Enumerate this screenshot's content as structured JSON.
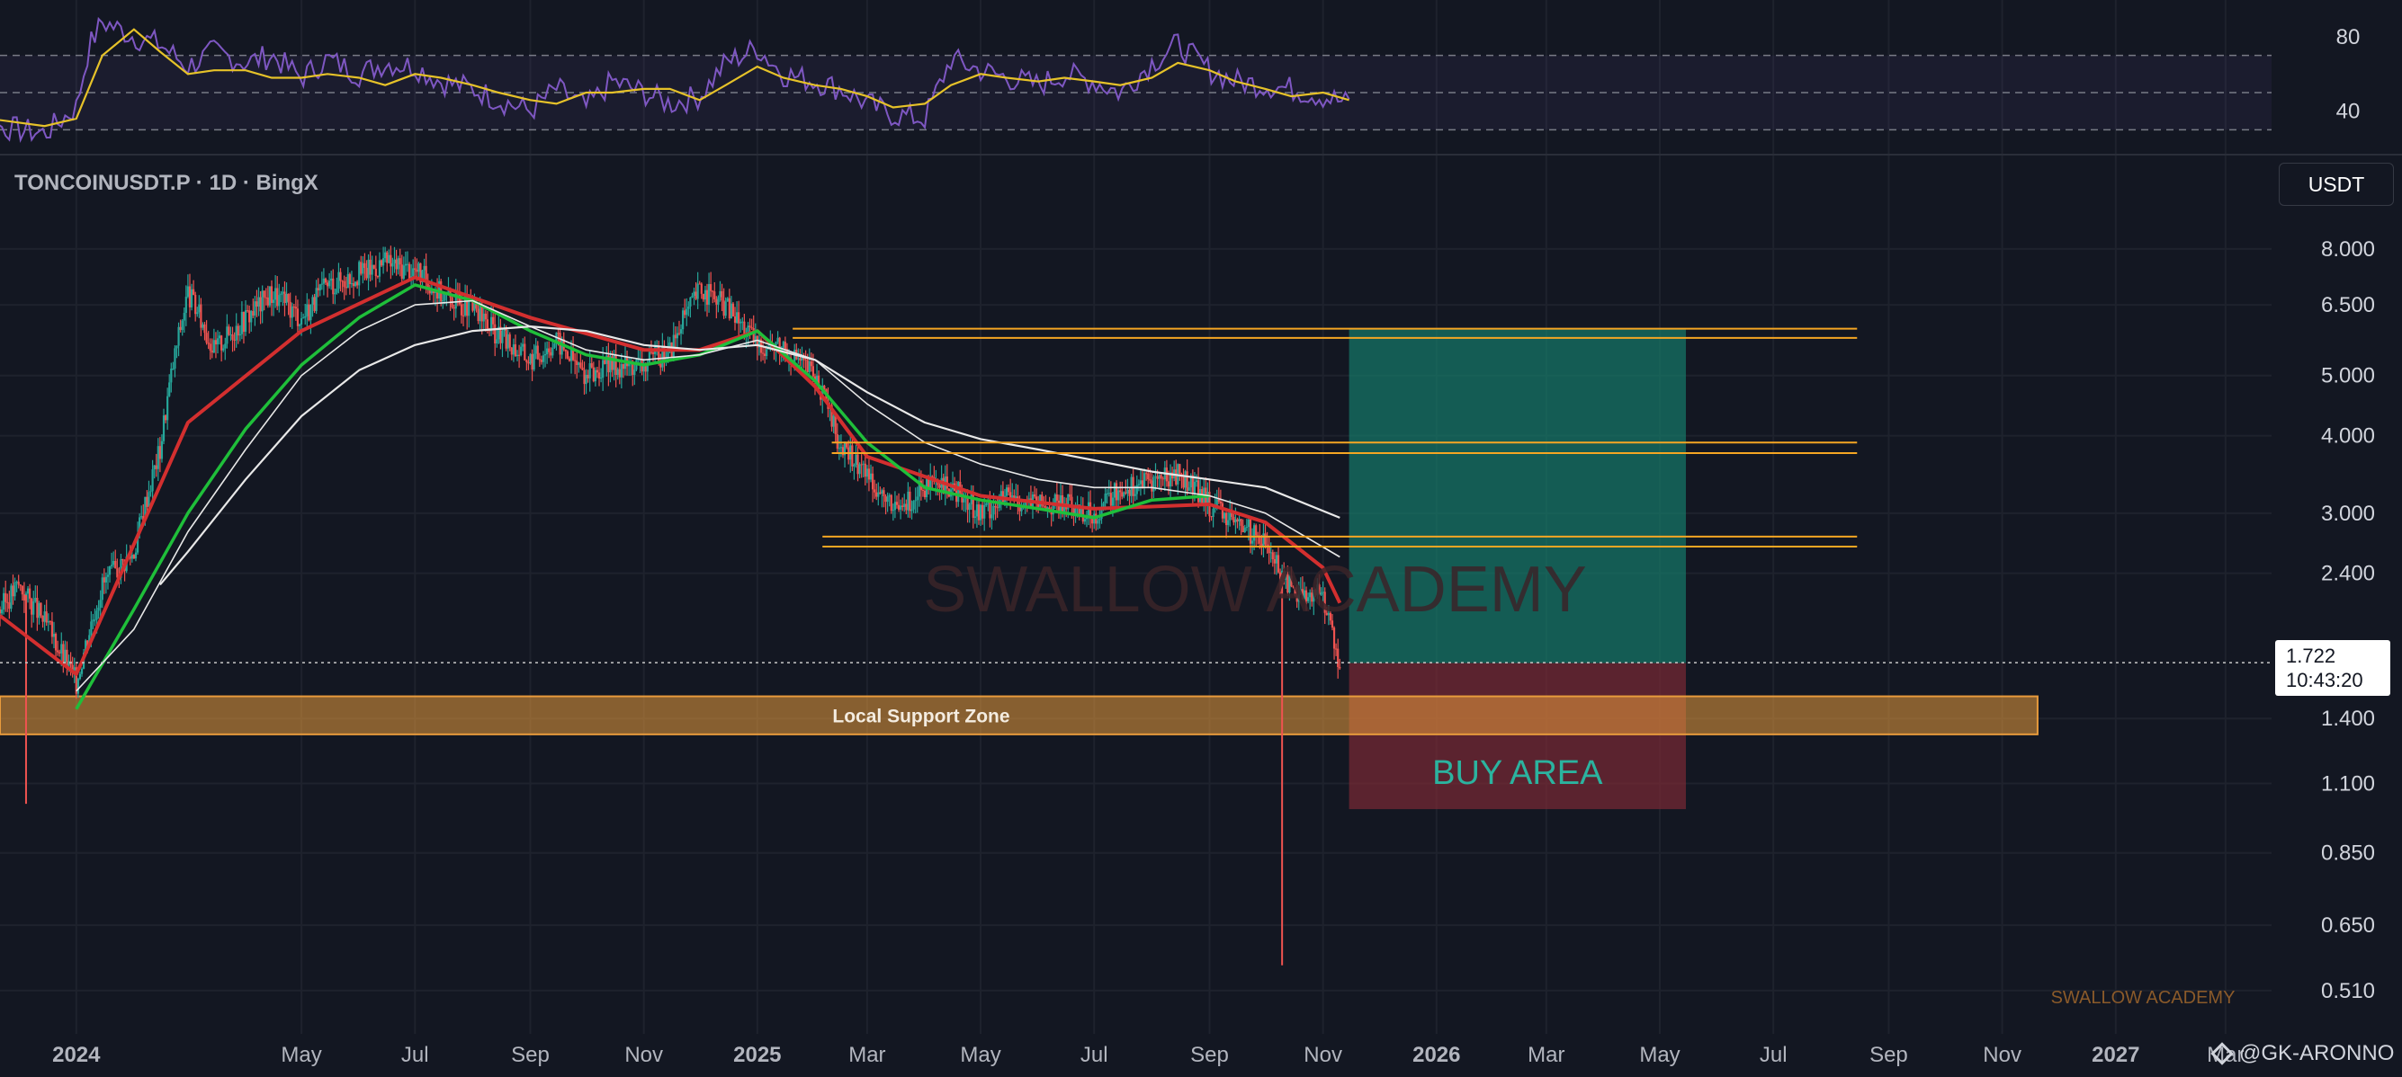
{
  "header": {
    "symbol": "TONCOINUSDT.P · 1D · BingX",
    "currency_button": "USDT"
  },
  "price_tag": {
    "price": "1.722",
    "countdown": "10:43:20"
  },
  "credit": "@GK-ARONNO",
  "watermark": "SWALLOW ACADEMY",
  "small_watermark": "SWALLOW ACADEMY",
  "colors": {
    "background": "#131722",
    "grid": "#1e222d",
    "candle_up": "#26a69a",
    "candle_down": "#ef5350",
    "level_line": "#f5a623",
    "ema_red": "#d32f2f",
    "ema_green": "#1fbf3a",
    "ma_white": "#e8e8e8",
    "rsi_line": "#7e57c2",
    "rsi_signal": "#e6c229",
    "support_zone": "#e89b3c",
    "buy_area_target": "#167a6a",
    "buy_area_stop": "#7a2a34",
    "buy_area_text": "#2bb39f"
  },
  "chart_data": [
    {
      "type": "line",
      "title": "",
      "xlabel": "",
      "ylabel": "",
      "ylim": [
        20,
        95
      ],
      "y_ticks": [
        80,
        40
      ],
      "bands": [
        70,
        50,
        30
      ],
      "series": [
        {
          "x": [
            "2023-10-15",
            "2023-11-01",
            "2023-11-15",
            "2023-12-01",
            "2023-12-15",
            "2024-01-01",
            "2024-01-08",
            "2024-01-15",
            "2024-01-22",
            "2024-02-01",
            "2024-02-15",
            "2024-03-01",
            "2024-03-15",
            "2024-04-01",
            "2024-04-15",
            "2024-05-01",
            "2024-05-15",
            "2024-06-01",
            "2024-06-15",
            "2024-07-01",
            "2024-07-15",
            "2024-08-01",
            "2024-08-15",
            "2024-09-01",
            "2024-09-15",
            "2024-10-01",
            "2024-10-15",
            "2024-11-01",
            "2024-11-15",
            "2024-12-01",
            "2024-12-15",
            "2025-01-01",
            "2025-01-15",
            "2025-02-01",
            "2025-02-15",
            "2025-03-01",
            "2025-03-15",
            "2025-04-01",
            "2025-04-15",
            "2025-05-01",
            "2025-05-15",
            "2025-06-01",
            "2025-06-15",
            "2025-07-01",
            "2025-07-15",
            "2025-08-01",
            "2025-08-15",
            "2025-09-01",
            "2025-09-15",
            "2025-10-01",
            "2025-10-15",
            "2025-11-01",
            "2025-11-15"
          ],
          "values": [
            38,
            36,
            33,
            30,
            28,
            42,
            75,
            88,
            85,
            80,
            76,
            64,
            72,
            66,
            70,
            58,
            68,
            60,
            66,
            64,
            56,
            52,
            46,
            40,
            52,
            42,
            56,
            50,
            44,
            48,
            66,
            74,
            60,
            56,
            52,
            44,
            38,
            36,
            68,
            62,
            58,
            54,
            60,
            56,
            50,
            66,
            76,
            62,
            56,
            54,
            52,
            48,
            44
          ]
        },
        {
          "x": [
            "2023-10-15",
            "2023-11-15",
            "2023-12-15",
            "2024-01-01",
            "2024-01-15",
            "2024-02-01",
            "2024-02-15",
            "2024-03-01",
            "2024-03-15",
            "2024-04-01",
            "2024-04-15",
            "2024-05-01",
            "2024-05-15",
            "2024-06-01",
            "2024-06-15",
            "2024-07-01",
            "2024-07-15",
            "2024-08-01",
            "2024-08-15",
            "2024-09-01",
            "2024-09-15",
            "2024-10-01",
            "2024-10-15",
            "2024-11-01",
            "2024-11-15",
            "2024-12-01",
            "2024-12-15",
            "2025-01-01",
            "2025-01-15",
            "2025-02-01",
            "2025-02-15",
            "2025-03-01",
            "2025-03-15",
            "2025-04-01",
            "2025-04-15",
            "2025-05-01",
            "2025-05-15",
            "2025-06-01",
            "2025-06-15",
            "2025-07-01",
            "2025-07-15",
            "2025-08-01",
            "2025-08-15",
            "2025-09-01",
            "2025-09-15",
            "2025-10-01",
            "2025-10-15",
            "2025-11-01",
            "2025-11-15"
          ],
          "values": [
            40,
            36,
            32,
            36,
            70,
            84,
            72,
            60,
            62,
            62,
            58,
            58,
            60,
            58,
            54,
            60,
            58,
            54,
            50,
            46,
            44,
            50,
            50,
            52,
            52,
            46,
            54,
            64,
            58,
            54,
            52,
            48,
            42,
            44,
            54,
            60,
            58,
            56,
            58,
            56,
            54,
            58,
            66,
            62,
            56,
            52,
            48,
            50,
            46
          ]
        }
      ]
    },
    {
      "type": "line",
      "title": "",
      "xlabel": "",
      "ylabel": "",
      "log_scale": true,
      "ylim": [
        0.48,
        9.2
      ],
      "y_ticks": [
        "8.000",
        "6.500",
        "5.000",
        "4.000",
        "3.000",
        "2.400",
        "1.400",
        "1.100",
        "0.850",
        "0.650",
        "0.510"
      ],
      "x_ticks": [
        "2024",
        "May",
        "Jul",
        "Sep",
        "Nov",
        "2025",
        "Mar",
        "May",
        "Jul",
        "Sep",
        "Nov",
        "2026",
        "Mar",
        "May",
        "Jul",
        "Sep",
        "Nov",
        "2027",
        "Mar"
      ],
      "x_tick_dates": [
        "2024-01-01",
        "2024-05-01",
        "2024-07-01",
        "2024-09-01",
        "2024-11-01",
        "2025-01-01",
        "2025-03-01",
        "2025-05-01",
        "2025-07-01",
        "2025-09-01",
        "2025-11-01",
        "2026-01-01",
        "2026-03-01",
        "2026-05-01",
        "2026-07-01",
        "2026-09-01",
        "2026-11-01",
        "2027-01-01",
        "2027-03-01"
      ],
      "xlim": [
        "2023-11-21",
        "2027-05-01"
      ],
      "last_price": 1.722,
      "price": {
        "x": [
          "2023-11-21",
          "2023-12-01",
          "2023-12-15",
          "2024-01-01",
          "2024-01-15",
          "2024-02-01",
          "2024-02-15",
          "2024-03-01",
          "2024-03-15",
          "2024-04-01",
          "2024-04-15",
          "2024-05-01",
          "2024-05-15",
          "2024-06-01",
          "2024-06-15",
          "2024-07-01",
          "2024-07-15",
          "2024-08-01",
          "2024-08-15",
          "2024-09-01",
          "2024-09-15",
          "2024-10-01",
          "2024-10-15",
          "2024-11-01",
          "2024-11-15",
          "2024-12-01",
          "2024-12-15",
          "2025-01-01",
          "2025-01-15",
          "2025-02-01",
          "2025-02-15",
          "2025-03-01",
          "2025-03-15",
          "2025-04-01",
          "2025-04-15",
          "2025-05-01",
          "2025-05-15",
          "2025-06-01",
          "2025-06-15",
          "2025-07-01",
          "2025-07-15",
          "2025-08-01",
          "2025-08-15",
          "2025-09-01",
          "2025-09-15",
          "2025-10-01",
          "2025-10-10",
          "2025-10-15",
          "2025-11-01",
          "2025-11-10"
        ],
        "values": [
          2.1,
          2.3,
          2.0,
          1.6,
          2.3,
          2.6,
          3.8,
          6.8,
          5.5,
          6.2,
          6.8,
          6.2,
          7.0,
          7.3,
          7.6,
          7.4,
          6.8,
          6.4,
          5.8,
          5.3,
          5.7,
          5.0,
          5.2,
          5.2,
          5.5,
          6.9,
          6.5,
          5.6,
          5.6,
          5.0,
          3.8,
          3.5,
          3.0,
          3.3,
          3.3,
          3.0,
          3.2,
          3.1,
          3.1,
          3.0,
          3.3,
          3.4,
          3.5,
          3.1,
          2.9,
          2.7,
          2.4,
          2.25,
          2.2,
          1.72
        ],
        "wick_lows": [
          {
            "x": "2023-12-05",
            "y": 1.02
          },
          {
            "x": "2025-10-10",
            "y": 0.56
          }
        ]
      },
      "series": [
        {
          "key": "ema_red",
          "x": [
            "2023-11-21",
            "2024-01-01",
            "2024-03-01",
            "2024-05-01",
            "2024-07-01",
            "2024-09-01",
            "2024-11-01",
            "2024-12-01",
            "2025-01-01",
            "2025-02-01",
            "2025-03-01",
            "2025-05-01",
            "2025-07-01",
            "2025-09-01",
            "2025-10-01",
            "2025-11-01",
            "2025-11-10"
          ],
          "values": [
            2.05,
            1.65,
            4.2,
            5.9,
            7.2,
            6.2,
            5.5,
            5.5,
            5.9,
            4.8,
            3.7,
            3.2,
            3.05,
            3.1,
            2.9,
            2.45,
            2.15
          ]
        },
        {
          "key": "ema_green",
          "x": [
            "2024-01-01",
            "2024-02-01",
            "2024-03-01",
            "2024-04-01",
            "2024-05-01",
            "2024-06-01",
            "2024-07-01",
            "2024-08-01",
            "2024-09-01",
            "2024-10-01",
            "2024-11-01",
            "2024-12-01",
            "2025-01-01",
            "2025-02-01",
            "2025-03-01",
            "2025-04-01",
            "2025-05-01",
            "2025-06-01",
            "2025-07-01",
            "2025-08-01",
            "2025-09-01"
          ],
          "values": [
            1.45,
            2.1,
            3.0,
            4.1,
            5.2,
            6.2,
            7.0,
            6.6,
            5.9,
            5.4,
            5.2,
            5.4,
            5.9,
            4.9,
            3.9,
            3.3,
            3.15,
            3.05,
            2.95,
            3.15,
            3.2
          ]
        },
        {
          "key": "ma_white_fast",
          "x": [
            "2024-01-01",
            "2024-02-01",
            "2024-03-01",
            "2024-04-01",
            "2024-05-01",
            "2024-06-01",
            "2024-07-01",
            "2024-08-01",
            "2024-09-01",
            "2024-10-01",
            "2024-11-01",
            "2024-12-01",
            "2025-01-01",
            "2025-02-01",
            "2025-03-01",
            "2025-04-01",
            "2025-05-01",
            "2025-06-01",
            "2025-07-01",
            "2025-08-01",
            "2025-09-01",
            "2025-10-01",
            "2025-11-10"
          ],
          "values": [
            1.55,
            1.95,
            2.8,
            3.8,
            5.0,
            5.9,
            6.5,
            6.6,
            6.0,
            5.5,
            5.3,
            5.4,
            5.7,
            5.3,
            4.5,
            3.9,
            3.6,
            3.4,
            3.3,
            3.3,
            3.2,
            3.0,
            2.55
          ]
        },
        {
          "key": "ma_white_slow",
          "x": [
            "2024-02-15",
            "2024-03-01",
            "2024-04-01",
            "2024-05-01",
            "2024-06-01",
            "2024-07-01",
            "2024-08-01",
            "2024-09-01",
            "2024-10-01",
            "2024-11-01",
            "2024-12-01",
            "2025-01-01",
            "2025-02-01",
            "2025-03-01",
            "2025-04-01",
            "2025-05-01",
            "2025-06-01",
            "2025-07-01",
            "2025-08-01",
            "2025-09-01",
            "2025-10-01",
            "2025-11-10"
          ],
          "values": [
            2.3,
            2.6,
            3.4,
            4.3,
            5.1,
            5.6,
            5.9,
            6.0,
            5.9,
            5.6,
            5.5,
            5.6,
            5.3,
            4.7,
            4.2,
            3.95,
            3.8,
            3.65,
            3.5,
            3.4,
            3.3,
            2.95
          ]
        }
      ],
      "levels": [
        {
          "x0": "2025-01-20",
          "x1": "2026-08-15",
          "y": 5.95
        },
        {
          "x0": "2025-01-20",
          "x1": "2026-08-15",
          "y": 5.75
        },
        {
          "x0": "2025-02-10",
          "x1": "2026-08-15",
          "y": 3.9
        },
        {
          "x0": "2025-02-10",
          "x1": "2026-08-15",
          "y": 3.75
        },
        {
          "x0": "2025-02-05",
          "x1": "2026-08-15",
          "y": 2.75
        },
        {
          "x0": "2025-02-05",
          "x1": "2026-08-15",
          "y": 2.65
        }
      ],
      "support_zone": {
        "label": "Local Support Zone",
        "x0": "2023-11-21",
        "x1": "2026-11-20",
        "y0": 1.32,
        "y1": 1.52
      },
      "buy_area": {
        "label": "BUY AREA",
        "x0": "2025-11-15",
        "x1": "2026-05-15",
        "entry": 1.72,
        "target": 5.95,
        "stop": 1.0
      }
    }
  ]
}
